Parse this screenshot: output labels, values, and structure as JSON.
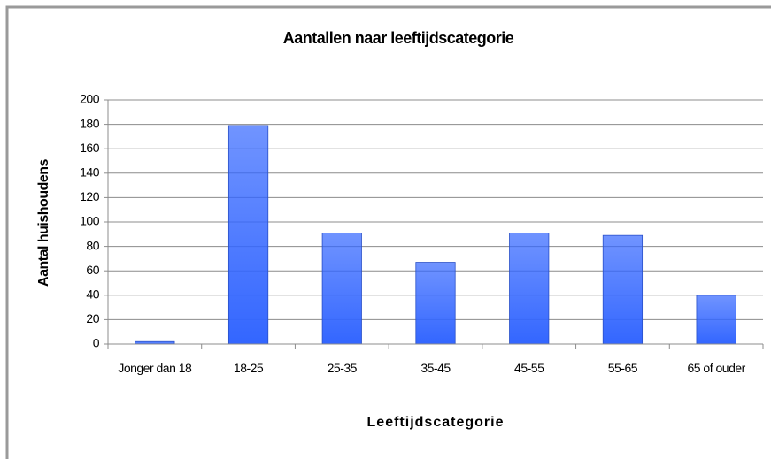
{
  "chart_data": {
    "type": "bar",
    "title": "Aantallen naar leeftijdscategorie",
    "x_label": "Leeftijdscategorie",
    "y_label": "Aantal huishoudens",
    "categories": [
      "Jonger dan 18",
      "18-25",
      "25-35",
      "35-45",
      "45-55",
      "55-65",
      "65 of ouder"
    ],
    "values": [
      2,
      179,
      91,
      67,
      91,
      89,
      40
    ],
    "color": "#3366ff",
    "ylim": [
      0,
      200
    ],
    "yticks": [
      0,
      20,
      40,
      60,
      80,
      100,
      120,
      140,
      160,
      180,
      200
    ],
    "grid": true
  }
}
